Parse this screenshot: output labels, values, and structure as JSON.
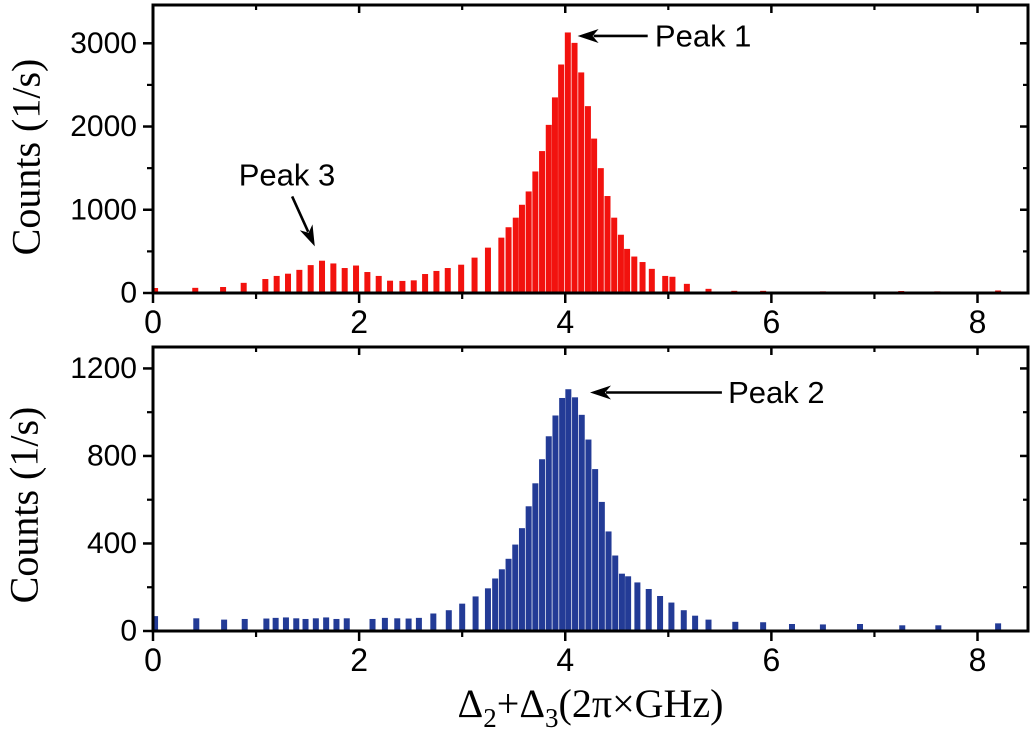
{
  "figure": {
    "background": "#ffffff",
    "text_color": "#000000",
    "xaxis_title": "Δ₂+Δ₃(2π×GHz)",
    "xaxis_title_parts": [
      [
        "Δ",
        false
      ],
      [
        "2",
        true
      ],
      [
        "+Δ",
        false
      ],
      [
        "3",
        true
      ],
      [
        "(2π×GHz)",
        false
      ]
    ]
  },
  "chart_data": [
    {
      "type": "bar",
      "name": "top-histogram",
      "bar_color": "#F2120E",
      "ylabel": "Counts (1/s)",
      "yticks": [
        0,
        1000,
        2000,
        3000
      ],
      "yminor": [
        500,
        1500,
        2500
      ],
      "ylim": [
        0,
        3460
      ],
      "xticks": [
        0,
        2,
        4,
        6,
        8
      ],
      "xminor": [
        1,
        3,
        5,
        7
      ],
      "xlim": [
        0,
        8.49
      ],
      "grid": false,
      "legend": "none",
      "annotations": [
        {
          "label": "Peak 1",
          "text_at": [
            4.87,
            3088
          ],
          "anchor": "start",
          "arrow_from": [
            4.8,
            3088
          ],
          "arrow_to": [
            4.12,
            3088
          ]
        },
        {
          "label": "Peak 3",
          "text_at": [
            1.3,
            1418
          ],
          "anchor": "middle",
          "arrow_from": [
            1.35,
            1160
          ],
          "arrow_to": [
            1.57,
            560
          ]
        }
      ],
      "bars": [
        [
          0.02,
          60
        ],
        [
          0.41,
          62
        ],
        [
          0.68,
          72
        ],
        [
          0.88,
          122
        ],
        [
          1.09,
          168
        ],
        [
          1.2,
          205
        ],
        [
          1.31,
          232
        ],
        [
          1.42,
          278
        ],
        [
          1.53,
          335
        ],
        [
          1.64,
          388
        ],
        [
          1.75,
          355
        ],
        [
          1.86,
          300
        ],
        [
          1.97,
          330
        ],
        [
          2.08,
          252
        ],
        [
          2.19,
          205
        ],
        [
          2.3,
          148
        ],
        [
          2.42,
          145
        ],
        [
          2.53,
          152
        ],
        [
          2.64,
          228
        ],
        [
          2.75,
          265
        ],
        [
          2.86,
          300
        ],
        [
          2.99,
          340
        ],
        [
          3.12,
          425
        ],
        [
          3.25,
          545
        ],
        [
          3.38,
          665
        ],
        [
          3.45,
          790
        ],
        [
          3.52,
          905
        ],
        [
          3.58,
          1060
        ],
        [
          3.645,
          1220
        ],
        [
          3.71,
          1460
        ],
        [
          3.775,
          1705
        ],
        [
          3.84,
          2020
        ],
        [
          3.9,
          2350
        ],
        [
          3.96,
          2745
        ],
        [
          4.025,
          3130
        ],
        [
          4.09,
          3005
        ],
        [
          4.155,
          2650
        ],
        [
          4.22,
          2245
        ],
        [
          4.28,
          1855
        ],
        [
          4.345,
          1500
        ],
        [
          4.41,
          1165
        ],
        [
          4.475,
          905
        ],
        [
          4.54,
          700
        ],
        [
          4.6,
          530
        ],
        [
          4.67,
          438
        ],
        [
          4.75,
          372
        ],
        [
          4.84,
          290
        ],
        [
          4.97,
          205
        ],
        [
          5.04,
          195
        ],
        [
          5.18,
          110
        ],
        [
          5.39,
          50
        ],
        [
          5.64,
          26
        ],
        [
          5.92,
          26
        ],
        [
          6.2,
          16
        ],
        [
          6.5,
          20
        ],
        [
          6.84,
          16
        ],
        [
          7.26,
          24
        ],
        [
          7.61,
          20
        ],
        [
          8.2,
          30
        ]
      ]
    },
    {
      "type": "bar",
      "name": "bottom-histogram",
      "bar_color": "#233B96",
      "ylabel": "Counts (1/s)",
      "yticks": [
        0,
        400,
        800,
        1200
      ],
      "yminor": [
        200,
        600,
        1000
      ],
      "ylim": [
        0,
        1298
      ],
      "xticks": [
        0,
        2,
        4,
        6,
        8
      ],
      "xminor": [
        1,
        3,
        5,
        7
      ],
      "xlim": [
        0,
        8.49
      ],
      "grid": false,
      "legend": "none",
      "annotations": [
        {
          "label": "Peak 2",
          "text_at": [
            5.58,
            1090
          ],
          "anchor": "start",
          "arrow_from": [
            5.52,
            1090
          ],
          "arrow_to": [
            4.24,
            1090
          ]
        }
      ],
      "bars": [
        [
          0.02,
          68
        ],
        [
          0.42,
          58
        ],
        [
          0.69,
          52
        ],
        [
          0.89,
          55
        ],
        [
          1.1,
          57
        ],
        [
          1.19,
          60
        ],
        [
          1.29,
          62
        ],
        [
          1.39,
          58
        ],
        [
          1.48,
          55
        ],
        [
          1.58,
          58
        ],
        [
          1.68,
          62
        ],
        [
          1.78,
          55
        ],
        [
          1.88,
          58
        ],
        [
          2.13,
          55
        ],
        [
          2.25,
          60
        ],
        [
          2.37,
          58
        ],
        [
          2.48,
          57
        ],
        [
          2.58,
          60
        ],
        [
          2.72,
          80
        ],
        [
          2.87,
          95
        ],
        [
          3.0,
          125
        ],
        [
          3.13,
          158
        ],
        [
          3.25,
          195
        ],
        [
          3.32,
          240
        ],
        [
          3.385,
          282
        ],
        [
          3.45,
          330
        ],
        [
          3.515,
          395
        ],
        [
          3.58,
          470
        ],
        [
          3.645,
          570
        ],
        [
          3.71,
          675
        ],
        [
          3.775,
          785
        ],
        [
          3.84,
          890
        ],
        [
          3.905,
          985
        ],
        [
          3.97,
          1065
        ],
        [
          4.03,
          1105
        ],
        [
          4.095,
          1068
        ],
        [
          4.16,
          988
        ],
        [
          4.225,
          875
        ],
        [
          4.29,
          740
        ],
        [
          4.355,
          590
        ],
        [
          4.42,
          455
        ],
        [
          4.485,
          345
        ],
        [
          4.55,
          262
        ],
        [
          4.61,
          250
        ],
        [
          4.7,
          222
        ],
        [
          4.81,
          192
        ],
        [
          4.92,
          160
        ],
        [
          5.03,
          130
        ],
        [
          5.15,
          95
        ],
        [
          5.26,
          70
        ],
        [
          5.39,
          52
        ],
        [
          5.65,
          42
        ],
        [
          5.92,
          40
        ],
        [
          6.2,
          32
        ],
        [
          6.5,
          30
        ],
        [
          6.86,
          32
        ],
        [
          7.27,
          26
        ],
        [
          7.62,
          26
        ],
        [
          8.2,
          35
        ]
      ]
    }
  ]
}
